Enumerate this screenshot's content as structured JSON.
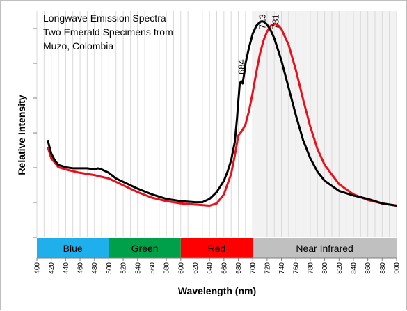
{
  "chart_data": {
    "type": "line",
    "title_lines": [
      "Longwave Emission Spectra",
      "Two Emerald Specimens from",
      "Muzo, Colombia"
    ],
    "xlabel": "Wavelength (nm)",
    "ylabel": "Relative Intensity",
    "xlim": [
      400,
      900
    ],
    "ylim": [
      0,
      1
    ],
    "x_ticks": [
      400,
      420,
      440,
      460,
      480,
      500,
      520,
      540,
      560,
      580,
      600,
      620,
      640,
      660,
      680,
      700,
      720,
      740,
      760,
      780,
      800,
      820,
      840,
      860,
      880,
      900
    ],
    "grid": true,
    "ir_shade_from": 700,
    "bands": [
      {
        "label": "Blue",
        "from": 400,
        "to": 500,
        "color": "#1fb0ec"
      },
      {
        "label": "Green",
        "from": 500,
        "to": 600,
        "color": "#00a04a"
      },
      {
        "label": "Red",
        "from": 600,
        "to": 700,
        "color": "#ff0000"
      },
      {
        "label": "Near Infrared",
        "from": 700,
        "to": 900,
        "color": "#c0c0c0"
      }
    ],
    "peak_labels": [
      {
        "text": "684",
        "x": 684,
        "y": 0.72
      },
      {
        "text": "713",
        "x": 713,
        "y": 0.92
      },
      {
        "text": "731",
        "x": 731,
        "y": 0.92
      }
    ],
    "series": [
      {
        "color": "#000000",
        "x": [
          415,
          420,
          425,
          430,
          440,
          450,
          460,
          470,
          480,
          485,
          490,
          500,
          510,
          520,
          540,
          560,
          580,
          600,
          620,
          630,
          640,
          650,
          660,
          665,
          670,
          675,
          678,
          680,
          682,
          684,
          686,
          688,
          690,
          695,
          700,
          705,
          710,
          713,
          716,
          720,
          725,
          730,
          740,
          750,
          760,
          770,
          780,
          790,
          800,
          820,
          840,
          860,
          880,
          900
        ],
        "y": [
          0.43,
          0.37,
          0.34,
          0.32,
          0.31,
          0.305,
          0.305,
          0.305,
          0.3,
          0.305,
          0.3,
          0.285,
          0.26,
          0.245,
          0.215,
          0.19,
          0.17,
          0.16,
          0.155,
          0.155,
          0.17,
          0.2,
          0.25,
          0.29,
          0.34,
          0.42,
          0.52,
          0.6,
          0.68,
          0.69,
          0.68,
          0.72,
          0.77,
          0.84,
          0.9,
          0.935,
          0.952,
          0.955,
          0.952,
          0.94,
          0.915,
          0.88,
          0.78,
          0.66,
          0.54,
          0.43,
          0.35,
          0.29,
          0.25,
          0.205,
          0.185,
          0.17,
          0.15,
          0.14
        ]
      },
      {
        "color": "#e8101a",
        "x": [
          415,
          420,
          425,
          430,
          440,
          460,
          480,
          500,
          520,
          540,
          560,
          580,
          600,
          620,
          640,
          650,
          660,
          670,
          675,
          680,
          685,
          690,
          695,
          700,
          705,
          710,
          715,
          720,
          725,
          731,
          736,
          740,
          750,
          760,
          770,
          780,
          790,
          800,
          820,
          840,
          860,
          880,
          900
        ],
        "y": [
          0.4,
          0.35,
          0.33,
          0.31,
          0.3,
          0.285,
          0.275,
          0.26,
          0.23,
          0.2,
          0.175,
          0.16,
          0.15,
          0.145,
          0.14,
          0.15,
          0.19,
          0.28,
          0.36,
          0.45,
          0.47,
          0.5,
          0.56,
          0.64,
          0.73,
          0.81,
          0.87,
          0.91,
          0.935,
          0.945,
          0.935,
          0.92,
          0.85,
          0.74,
          0.61,
          0.49,
          0.39,
          0.32,
          0.235,
          0.19,
          0.165,
          0.15,
          0.14
        ]
      }
    ]
  }
}
